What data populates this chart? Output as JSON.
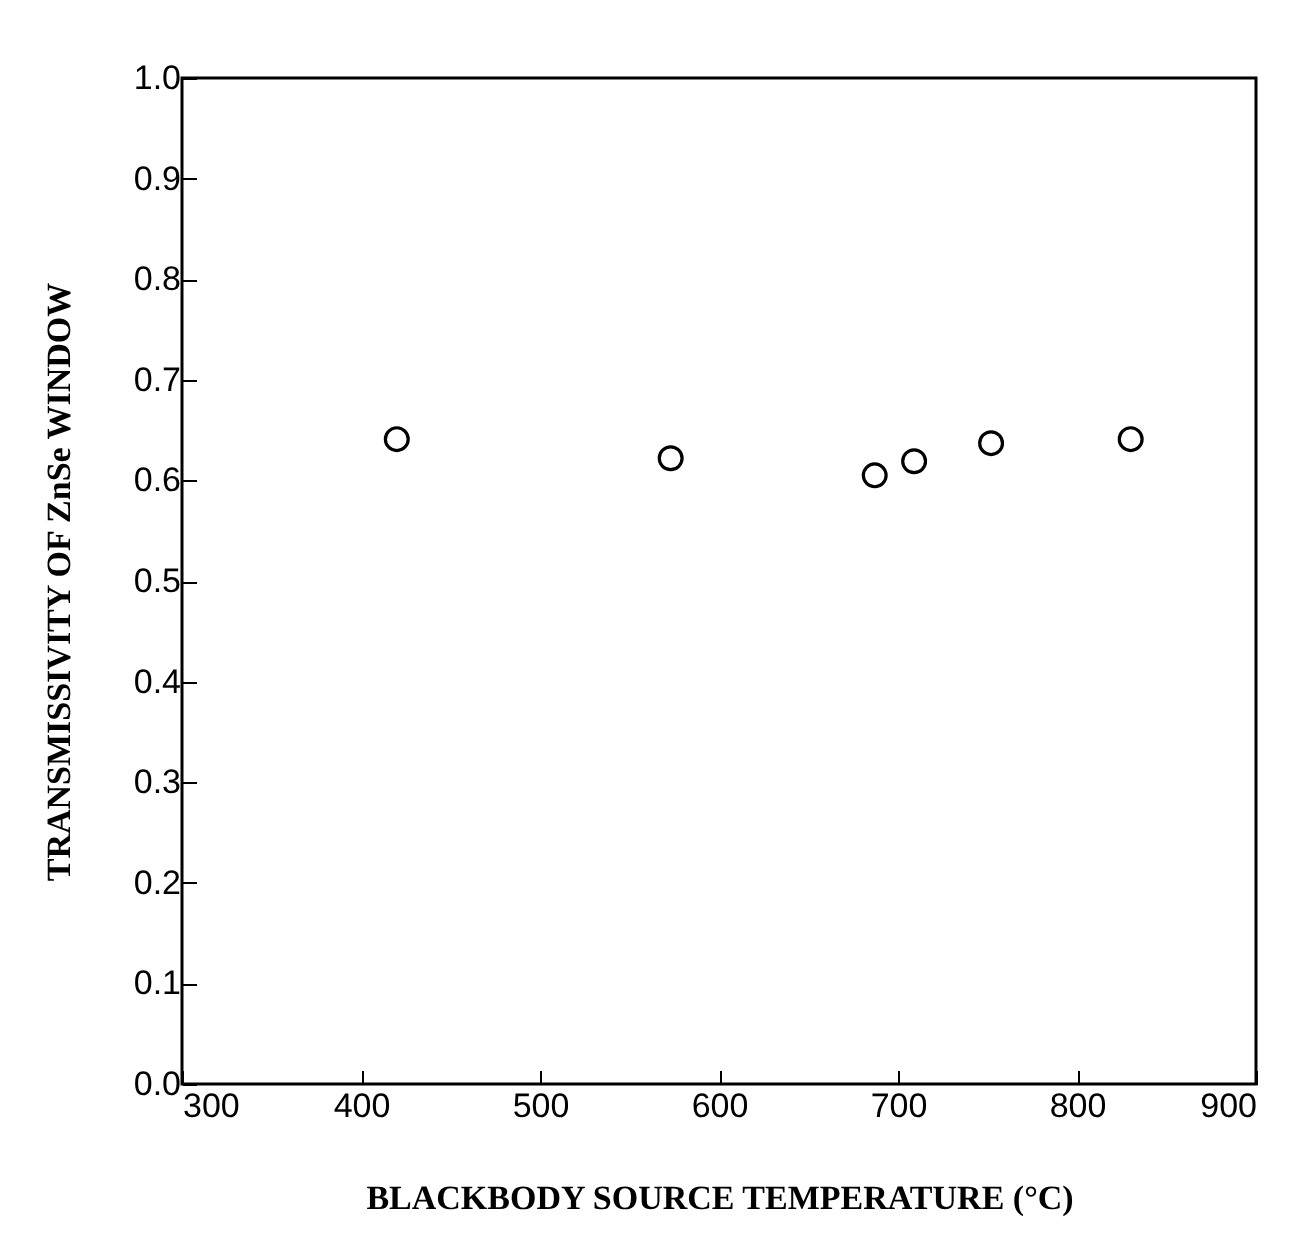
{
  "chart_data": {
    "type": "scatter",
    "xlabel": "BLACKBODY SOURCE TEMPERATURE (°C)",
    "ylabel": "TRANSMISSIVITY OF ZnSe WINDOW",
    "x": [
      420,
      573,
      687,
      709,
      752,
      830
    ],
    "series": [
      {
        "color": "#000000",
        "values": [
          0.641,
          0.622,
          0.605,
          0.619,
          0.637,
          0.641
        ]
      }
    ],
    "xlim": [
      300,
      900
    ],
    "xticks": [
      300,
      400,
      500,
      600,
      700,
      800,
      900
    ],
    "ylim": [
      0,
      1
    ],
    "yticks": [
      {
        "value": 0,
        "label": "0.0"
      },
      0.1,
      0.2,
      0.3,
      0.4,
      0.5,
      0.6,
      0.7,
      0.8,
      0.9,
      {
        "value": 1,
        "label": "1.0"
      }
    ],
    "marker": "circle",
    "grid": false,
    "legend": false
  }
}
